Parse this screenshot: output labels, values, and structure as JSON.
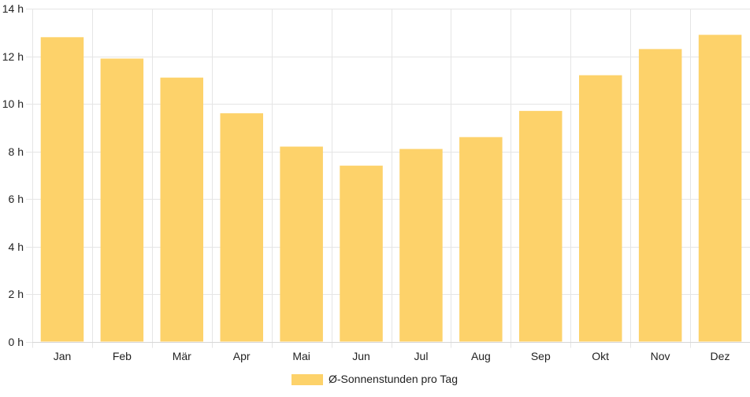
{
  "chart_data": {
    "type": "bar",
    "categories": [
      "Jan",
      "Feb",
      "Mär",
      "Apr",
      "Mai",
      "Jun",
      "Jul",
      "Aug",
      "Sep",
      "Okt",
      "Nov",
      "Dez"
    ],
    "series": [
      {
        "name": "Ø-Sonnenstunden pro Tag",
        "values": [
          12.8,
          11.9,
          11.1,
          9.6,
          8.2,
          7.4,
          8.1,
          8.6,
          9.7,
          11.2,
          12.3,
          12.9
        ],
        "color": "#fdd26a"
      }
    ],
    "ylim": [
      0,
      14
    ],
    "yticks": [
      0,
      2,
      4,
      6,
      8,
      10,
      12,
      14
    ],
    "ytick_labels": [
      "0 h",
      "2 h",
      "4 h",
      "6 h",
      "8 h",
      "10 h",
      "12 h",
      "14 h"
    ],
    "grid": true,
    "legend_position": "bottom"
  }
}
